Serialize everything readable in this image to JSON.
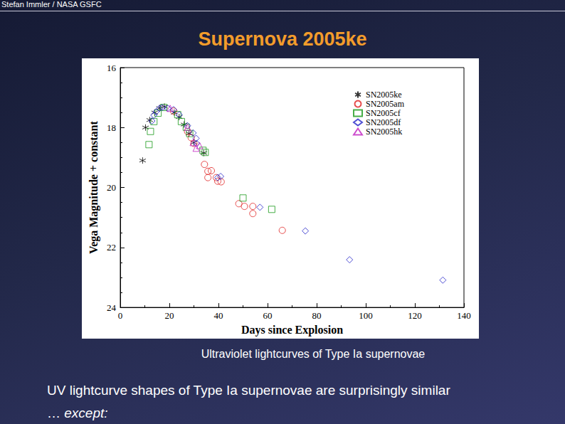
{
  "header": "Stefan Immler / NASA GSFC",
  "title": "Supernova 2005ke",
  "caption": "Ultraviolet lightcurves of Type Ia supernovae",
  "body": {
    "line1": "UV lightcurve shapes of Type Ia supernovae are surprisingly similar",
    "line2_prefix": "… ",
    "line2_emphasis": "except:"
  },
  "chart_data": {
    "type": "scatter",
    "xlabel": "Days since Explosion",
    "ylabel": "Vega Magnitude + constant",
    "xlim": [
      0,
      140
    ],
    "xticks": [
      0,
      20,
      40,
      60,
      80,
      100,
      120,
      140
    ],
    "ylim": [
      24,
      16
    ],
    "yticks": [
      16,
      18,
      20,
      22,
      24
    ],
    "grid": false,
    "legend": "upper right",
    "series": [
      {
        "name": "SN2005ke",
        "color": "#000000",
        "marker": "asterisk",
        "x": [
          9.1,
          10.3,
          12.0,
          14.0,
          16.0,
          18.0,
          22.0,
          24.0,
          26.0,
          28.0,
          30.0,
          34.0
        ],
        "values": [
          19.1,
          18.0,
          17.75,
          17.5,
          17.35,
          17.3,
          17.5,
          17.65,
          17.9,
          18.2,
          18.5,
          18.85
        ]
      },
      {
        "name": "SN2005am",
        "color": "#e02020",
        "marker": "circle",
        "x": [
          21.7,
          27.4,
          28.9,
          30.0,
          34.3,
          35.7,
          35.7,
          37.1,
          39.1,
          39.7,
          41.1,
          48.3,
          50.6,
          54.0,
          54.0,
          66.0
        ],
        "values": [
          17.45,
          18.13,
          18.34,
          18.53,
          19.23,
          19.46,
          19.67,
          19.44,
          19.67,
          19.79,
          19.81,
          20.54,
          20.63,
          20.63,
          20.87,
          21.43
        ]
      },
      {
        "name": "SN2005cf",
        "color": "#1a9a1a",
        "marker": "square",
        "x": [
          11.7,
          12.3,
          13.7,
          15.4,
          17.7,
          23.4,
          24.9,
          26.9,
          28.3,
          33.7,
          34.6,
          50.0,
          61.7
        ],
        "values": [
          18.57,
          18.13,
          17.8,
          17.52,
          17.33,
          17.57,
          17.8,
          17.99,
          18.2,
          18.76,
          18.83,
          20.35,
          20.73
        ]
      },
      {
        "name": "SN2005df",
        "color": "#2323c8",
        "marker": "diamond",
        "x": [
          12.9,
          13.7,
          14.6,
          16.0,
          17.1,
          19.4,
          21.7,
          24.0,
          27.4,
          29.7,
          30.9,
          31.1,
          39.7,
          40.9,
          56.9,
          75.4,
          93.4,
          131.4
        ],
        "values": [
          17.78,
          17.59,
          17.47,
          17.36,
          17.33,
          17.36,
          17.4,
          17.57,
          17.94,
          18.18,
          18.36,
          18.53,
          19.67,
          19.63,
          20.66,
          21.45,
          22.41,
          23.09
        ]
      },
      {
        "name": "SN2005hk",
        "color": "#c020c0",
        "marker": "triangle",
        "x": [
          20.3,
          27.4,
          29.7,
          30.9,
          32.3
        ],
        "values": [
          17.36,
          17.99,
          18.5,
          18.69,
          18.6
        ]
      }
    ]
  }
}
